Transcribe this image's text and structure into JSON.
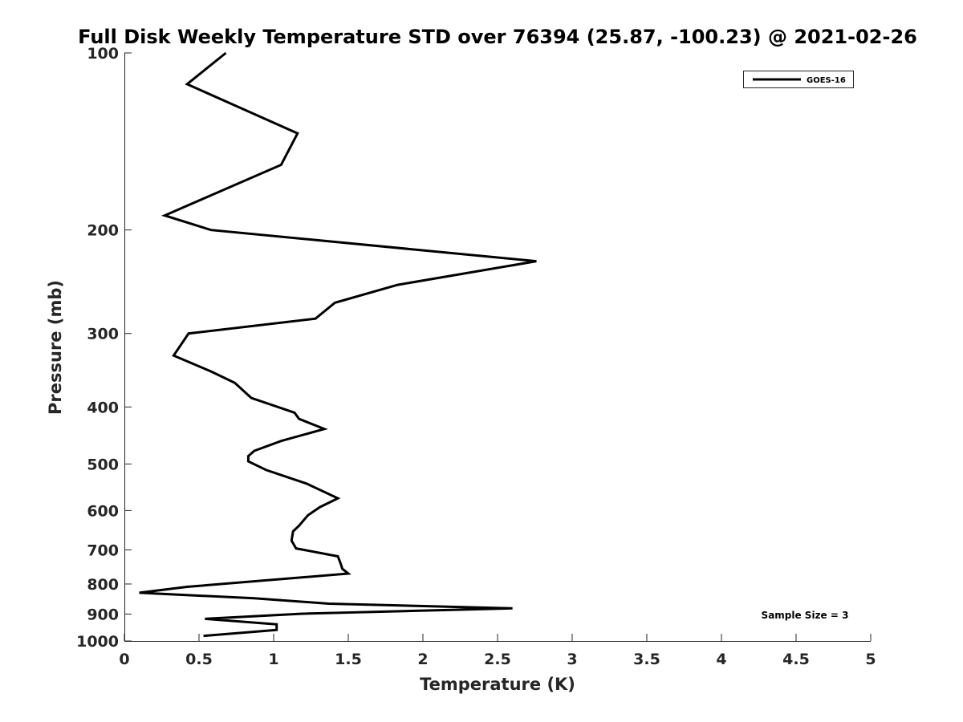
{
  "chart_data": {
    "type": "line",
    "title": "Full Disk Weekly Temperature STD over 76394 (25.87, -100.23) @ 2021-02-26",
    "xlabel": "Temperature (K)",
    "ylabel": "Pressure (mb)",
    "xlim": [
      0,
      5
    ],
    "ylim": [
      100,
      1000
    ],
    "yscale": "log",
    "yreversed": true,
    "x_ticks": [
      0,
      0.5,
      1,
      1.5,
      2,
      2.5,
      3,
      3.5,
      4,
      4.5,
      5
    ],
    "x_tick_labels": [
      "0",
      "0.5",
      "1",
      "1.5",
      "2",
      "2.5",
      "3",
      "3.5",
      "4",
      "4.5",
      "5"
    ],
    "y_ticks": [
      100,
      200,
      300,
      400,
      500,
      600,
      700,
      800,
      900,
      1000
    ],
    "y_tick_labels": [
      "100",
      "200",
      "300",
      "400",
      "500",
      "600",
      "700",
      "800",
      "900",
      "1000"
    ],
    "legend": {
      "position": "top-right",
      "entries": [
        "GOES-16"
      ]
    },
    "annotation": "Sample Size = 3",
    "series": [
      {
        "name": "GOES-16",
        "color": "#000000",
        "temperature": [
          0.68,
          0.42,
          1.16,
          1.05,
          0.27,
          0.58,
          2.76,
          1.83,
          1.41,
          1.28,
          0.43,
          0.33,
          0.58,
          0.74,
          0.85,
          1.14,
          1.17,
          1.34,
          1.05,
          0.87,
          0.83,
          0.83,
          0.95,
          1.22,
          1.43,
          1.31,
          1.23,
          1.17,
          1.13,
          1.12,
          1.15,
          1.43,
          1.45,
          1.46,
          1.5,
          0.42,
          0.1,
          0.87,
          1.37,
          2.6,
          1.18,
          0.54,
          1.02,
          1.02,
          0.53
        ],
        "pressure": [
          100,
          113,
          137,
          155,
          189,
          200,
          226,
          248,
          266,
          283,
          300,
          327,
          348,
          364,
          386,
          409,
          419,
          436,
          457,
          475,
          485,
          495,
          512,
          540,
          572,
          592,
          611,
          637,
          651,
          675,
          696,
          718,
          740,
          754,
          768,
          809,
          828,
          846,
          864,
          880,
          899,
          917,
          937,
          958,
          980
        ]
      }
    ]
  }
}
